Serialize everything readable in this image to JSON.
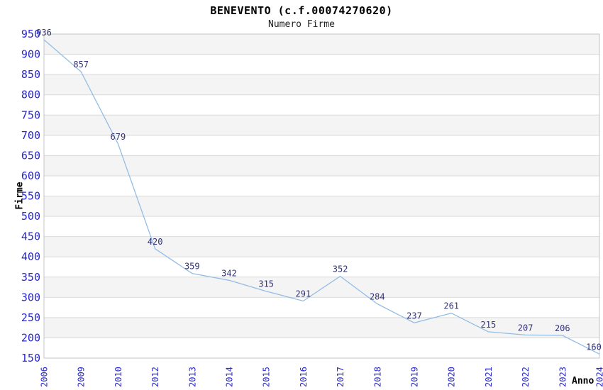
{
  "header": {
    "title": "BENEVENTO (c.f.00074270620)",
    "subtitle": "Numero Firme"
  },
  "chart_data": {
    "type": "line",
    "title": "BENEVENTO (c.f.00074270620)",
    "subtitle": "Numero Firme",
    "xlabel": "Anno",
    "ylabel": "Firme",
    "categories": [
      "2006",
      "2009",
      "2010",
      "2012",
      "2013",
      "2014",
      "2015",
      "2016",
      "2017",
      "2018",
      "2019",
      "2020",
      "2021",
      "2022",
      "2023",
      "2024"
    ],
    "values": [
      936,
      857,
      679,
      420,
      359,
      342,
      315,
      291,
      352,
      284,
      237,
      261,
      215,
      207,
      206,
      160
    ],
    "ylim": [
      150,
      950
    ],
    "ytick_step": 50,
    "grid": true,
    "legend_position": "none",
    "bands_alternating": true,
    "colors": {
      "line": "#94bde4",
      "tick_label": "#2929cc",
      "data_label": "#333377",
      "band": "#f4f4f4",
      "gridline": "#d9d9d9",
      "plot_border": "#c4c4c4",
      "title": "#000000",
      "axis_title": "#000000",
      "background": "#ffffff"
    }
  }
}
